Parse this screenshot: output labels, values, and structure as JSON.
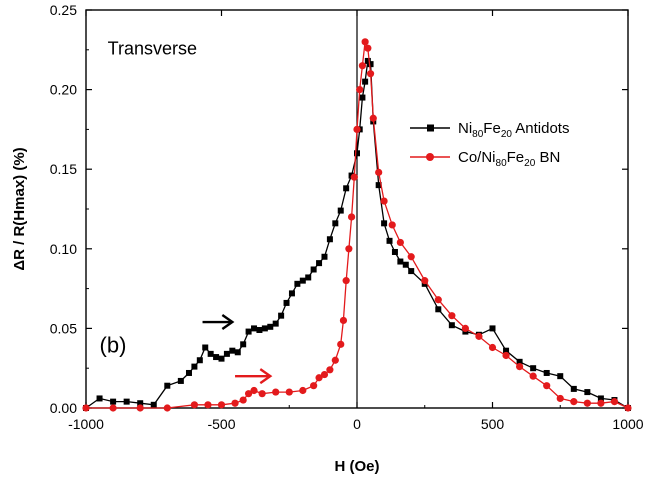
{
  "chart_data": {
    "type": "line",
    "title": "",
    "xlabel": "H (Oe)",
    "ylabel": "ΔR / R(Hmax) (%)",
    "xlim": [
      -1000,
      1000
    ],
    "ylim": [
      0,
      0.25
    ],
    "xticks": [
      -1000,
      -500,
      0,
      500,
      1000
    ],
    "xtick_labels": [
      "-1000",
      "-500",
      "0",
      "500",
      "1000"
    ],
    "yticks": [
      0.0,
      0.05,
      0.1,
      0.15,
      0.2,
      0.25
    ],
    "ytick_labels": [
      "0.00",
      "0.05",
      "0.10",
      "0.15",
      "0.20",
      "0.25"
    ],
    "annotations": [
      {
        "name": "orientation-label",
        "text": "Transverse",
        "x": -920,
        "y": 0.222
      },
      {
        "name": "panel-label",
        "text": "(b)",
        "x": -950,
        "y": 0.035
      }
    ],
    "arrows": [
      {
        "name": "black-arrow",
        "color": "#000000",
        "x_from": -570,
        "x_to": -460,
        "y": 0.054
      },
      {
        "name": "red-arrow",
        "color": "#e31a1c",
        "x_from": -450,
        "x_to": -320,
        "y": 0.02
      }
    ],
    "legend": {
      "position": "right",
      "entries": [
        {
          "prefix": "Ni",
          "sub1": "80",
          "mid": "Fe",
          "sub2": "20",
          "suffix": " Antidots"
        },
        {
          "prefix": "Co/Ni",
          "sub1": "80",
          "mid": "Fe",
          "sub2": "20",
          "suffix": " BN"
        }
      ]
    },
    "series": [
      {
        "name": "Ni80Fe20 Antidots",
        "color": "#000000",
        "marker": "square",
        "x": [
          -1000,
          -950,
          -900,
          -850,
          -800,
          -750,
          -700,
          -650,
          -620,
          -600,
          -580,
          -560,
          -540,
          -520,
          -500,
          -480,
          -460,
          -440,
          -420,
          -400,
          -380,
          -360,
          -340,
          -320,
          -300,
          -280,
          -260,
          -240,
          -220,
          -200,
          -180,
          -160,
          -140,
          -120,
          -100,
          -80,
          -60,
          -40,
          -20,
          0,
          10,
          20,
          30,
          40,
          50,
          60,
          80,
          100,
          120,
          140,
          160,
          180,
          200,
          250,
          300,
          350,
          400,
          450,
          500,
          550,
          600,
          650,
          700,
          750,
          800,
          850,
          900,
          950,
          1000
        ],
        "y": [
          0.0,
          0.006,
          0.004,
          0.004,
          0.003,
          0.002,
          0.014,
          0.017,
          0.022,
          0.026,
          0.03,
          0.038,
          0.034,
          0.032,
          0.031,
          0.034,
          0.036,
          0.035,
          0.04,
          0.048,
          0.05,
          0.049,
          0.05,
          0.051,
          0.053,
          0.058,
          0.066,
          0.072,
          0.078,
          0.08,
          0.082,
          0.087,
          0.091,
          0.095,
          0.106,
          0.116,
          0.124,
          0.138,
          0.146,
          0.16,
          0.175,
          0.195,
          0.205,
          0.218,
          0.216,
          0.18,
          0.14,
          0.116,
          0.105,
          0.098,
          0.092,
          0.09,
          0.086,
          0.078,
          0.062,
          0.052,
          0.048,
          0.046,
          0.05,
          0.036,
          0.029,
          0.025,
          0.022,
          0.02,
          0.012,
          0.01,
          0.006,
          0.005,
          0.0
        ]
      },
      {
        "name": "Co/Ni80Fe20 BN",
        "color": "#e31a1c",
        "marker": "circle",
        "x": [
          -1000,
          -900,
          -800,
          -700,
          -600,
          -550,
          -500,
          -450,
          -420,
          -400,
          -380,
          -350,
          -300,
          -250,
          -200,
          -160,
          -140,
          -120,
          -100,
          -80,
          -60,
          -50,
          -40,
          -30,
          -20,
          -10,
          0,
          10,
          20,
          30,
          40,
          50,
          60,
          80,
          100,
          130,
          160,
          200,
          250,
          300,
          350,
          400,
          450,
          500,
          550,
          600,
          650,
          700,
          750,
          800,
          850,
          900,
          950,
          1000
        ],
        "y": [
          0.0,
          0.0,
          0.0,
          0.0,
          0.002,
          0.002,
          0.002,
          0.003,
          0.005,
          0.009,
          0.011,
          0.009,
          0.01,
          0.01,
          0.011,
          0.014,
          0.019,
          0.021,
          0.024,
          0.03,
          0.04,
          0.055,
          0.08,
          0.1,
          0.12,
          0.145,
          0.175,
          0.2,
          0.215,
          0.23,
          0.226,
          0.21,
          0.182,
          0.148,
          0.13,
          0.115,
          0.104,
          0.095,
          0.08,
          0.068,
          0.058,
          0.05,
          0.045,
          0.038,
          0.033,
          0.026,
          0.02,
          0.014,
          0.006,
          0.004,
          0.003,
          0.003,
          0.004,
          0.0
        ]
      }
    ]
  }
}
